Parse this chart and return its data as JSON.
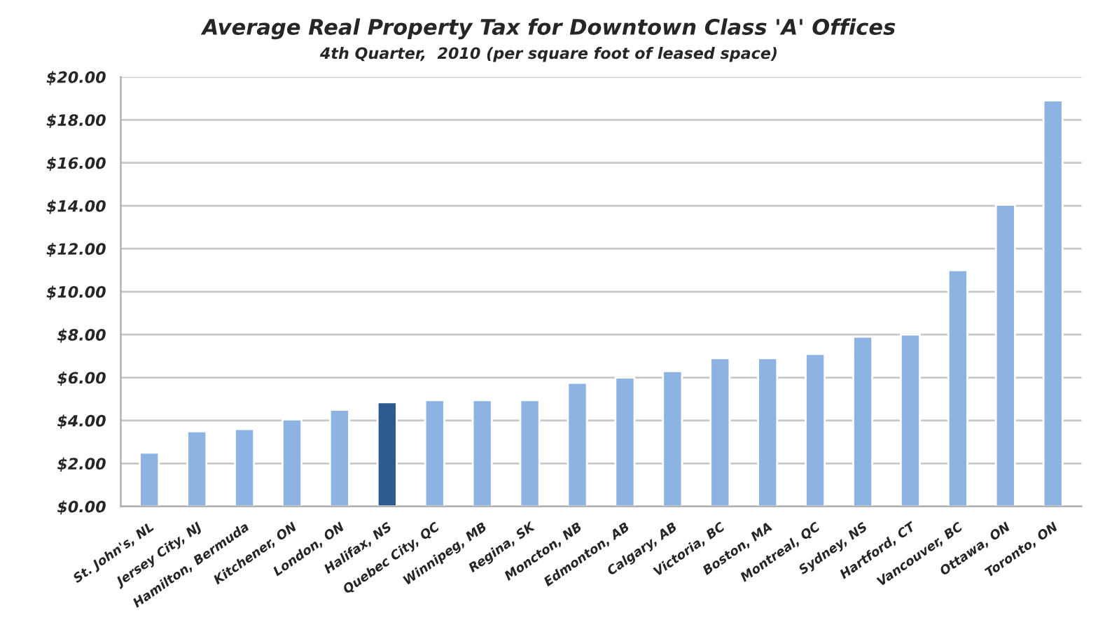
{
  "chart_data": {
    "type": "bar",
    "title": "Average Real Property Tax for Downtown Class 'A' Offices",
    "subtitle": "4th Quarter,  2010 (per square foot of leased space)",
    "categories": [
      "St. John's, NL",
      "Jersey City, NJ",
      "Hamilton, Bermuda",
      "Kitchener, ON",
      "London, ON",
      "Halifax, NS",
      "Quebec City, QC",
      "Winnipeg, MB",
      "Regina, SK",
      "Moncton, NB",
      "Edmonton, AB",
      "Calgary, AB",
      "Victoria, BC",
      "Boston, MA",
      "Montreal, QC",
      "Sydney, NS",
      "Hartford, CT",
      "Vancouver, BC",
      "Ottawa, ON",
      "Toronto, ON"
    ],
    "values": [
      2.5,
      3.5,
      3.6,
      4.05,
      4.5,
      4.85,
      4.95,
      4.95,
      4.95,
      5.75,
      6.0,
      6.3,
      6.9,
      6.9,
      7.1,
      7.9,
      8.0,
      11.0,
      14.05,
      18.9
    ],
    "colors": [
      "#8db3e2",
      "#8db3e2",
      "#8db3e2",
      "#8db3e2",
      "#8db3e2",
      "#2f5a8f",
      "#8db3e2",
      "#8db3e2",
      "#8db3e2",
      "#8db3e2",
      "#8db3e2",
      "#8db3e2",
      "#8db3e2",
      "#8db3e2",
      "#8db3e2",
      "#8db3e2",
      "#8db3e2",
      "#8db3e2",
      "#8db3e2",
      "#8db3e2"
    ],
    "ylim": [
      0,
      20
    ],
    "yticks": [
      {
        "value": 0,
        "label": "$0.00"
      },
      {
        "value": 2,
        "label": "$2.00"
      },
      {
        "value": 4,
        "label": "$4.00"
      },
      {
        "value": 6,
        "label": "$6.00"
      },
      {
        "value": 8,
        "label": "$8.00"
      },
      {
        "value": 10,
        "label": "$10.00"
      },
      {
        "value": 12,
        "label": "$12.00"
      },
      {
        "value": 14,
        "label": "$14.00"
      },
      {
        "value": 16,
        "label": "$16.00"
      },
      {
        "value": 18,
        "label": "$18.00"
      },
      {
        "value": 20,
        "label": "$20.00"
      }
    ],
    "grid": "y"
  }
}
